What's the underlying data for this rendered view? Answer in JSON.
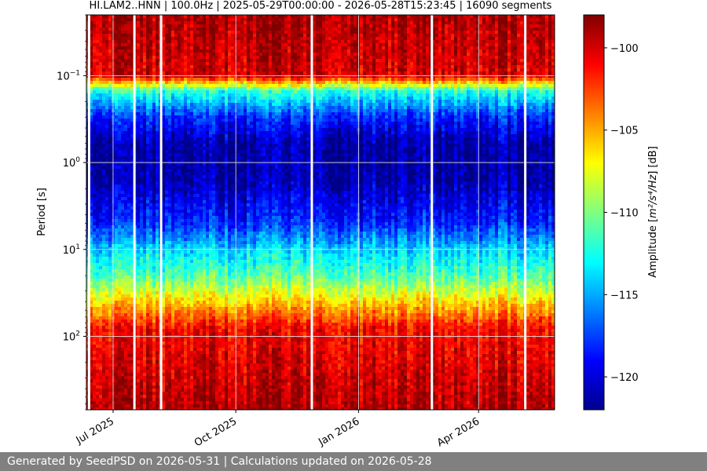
{
  "chart_data": {
    "type": "heatmap",
    "title": "HI.LAM2..HNN | 100.0Hz | 2025-05-29T00:00:00 - 2026-05-28T15:23:45 | 16090 segments",
    "ylabel": "Period [s]",
    "y_scale": "log",
    "y_inverted": true,
    "ylim": [
      0.02,
      700
    ],
    "xlim": [
      "2025-06-11",
      "2026-05-28"
    ],
    "x_ticks": [
      {
        "date": "2025-07-01",
        "label": "Jul 2025"
      },
      {
        "date": "2025-10-01",
        "label": "Oct 2025"
      },
      {
        "date": "2026-01-01",
        "label": "Jan 2026"
      },
      {
        "date": "2026-04-01",
        "label": "Apr 2026"
      }
    ],
    "y_ticks": [
      {
        "value": 0.1,
        "base": "10",
        "exp": "−1"
      },
      {
        "value": 1,
        "base": "10",
        "exp": "0"
      },
      {
        "value": 10,
        "base": "10",
        "exp": "1"
      },
      {
        "value": 100,
        "base": "10",
        "exp": "2"
      }
    ],
    "colormap": "jet",
    "grid": true,
    "colorbar": {
      "label_pre": "Amplitude [",
      "label_math": "m²/s⁴/Hz",
      "label_post": "] [dB]",
      "range": [
        -122,
        -98
      ],
      "ticks": [
        -100,
        -105,
        -110,
        -115,
        -120
      ]
    },
    "amplitude_profile": [
      {
        "period": 0.02,
        "db": -99
      },
      {
        "period": 0.1,
        "db": -100
      },
      {
        "period": 0.15,
        "db": -112
      },
      {
        "period": 0.3,
        "db": -118
      },
      {
        "period": 0.6,
        "db": -121
      },
      {
        "period": 1.5,
        "db": -121
      },
      {
        "period": 5,
        "db": -118
      },
      {
        "period": 10,
        "db": -114
      },
      {
        "period": 20,
        "db": -111
      },
      {
        "period": 40,
        "db": -106
      },
      {
        "period": 80,
        "db": -101
      },
      {
        "period": 700,
        "db": -99
      }
    ],
    "data_gaps": [
      "2025-06-13",
      "2025-07-17",
      "2025-08-06",
      "2025-11-27",
      "2026-02-25",
      "2026-05-06"
    ]
  },
  "footer": {
    "text": "Generated by SeedPSD on 2026-05-31 | Calculations updated on 2026-05-28"
  }
}
